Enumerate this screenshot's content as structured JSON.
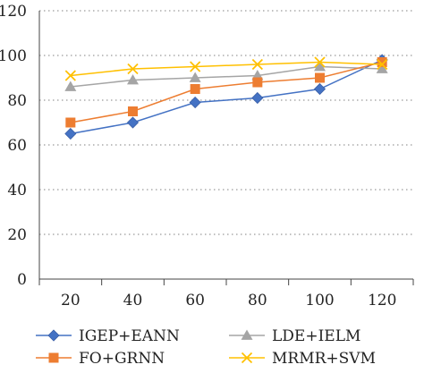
{
  "chart_data": {
    "type": "line",
    "title": "",
    "xlabel": "",
    "ylabel": "",
    "x": [
      20,
      40,
      60,
      80,
      100,
      120
    ],
    "xticks": [
      "20",
      "40",
      "60",
      "80",
      "100",
      "120"
    ],
    "yticks": [
      "0",
      "20",
      "40",
      "60",
      "80",
      "100",
      "120"
    ],
    "ylim": [
      0,
      120
    ],
    "grid": "horizontal dotted",
    "legend_position": "bottom",
    "series": [
      {
        "name": "IGEP+EANN",
        "color": "#4472c4",
        "marker": "diamond",
        "values": [
          65,
          70,
          79,
          81,
          85,
          98
        ]
      },
      {
        "name": "LDE+IELM",
        "color": "#a5a5a5",
        "marker": "triangle",
        "values": [
          86,
          89,
          90,
          91,
          95,
          94
        ]
      },
      {
        "name": "FO+GRNN",
        "color": "#ed7d31",
        "marker": "square",
        "values": [
          70,
          75,
          85,
          88,
          90,
          97
        ]
      },
      {
        "name": "MRMR+SVM",
        "color": "#ffc000",
        "marker": "x",
        "values": [
          91,
          94,
          95,
          96,
          97,
          96
        ]
      }
    ]
  }
}
